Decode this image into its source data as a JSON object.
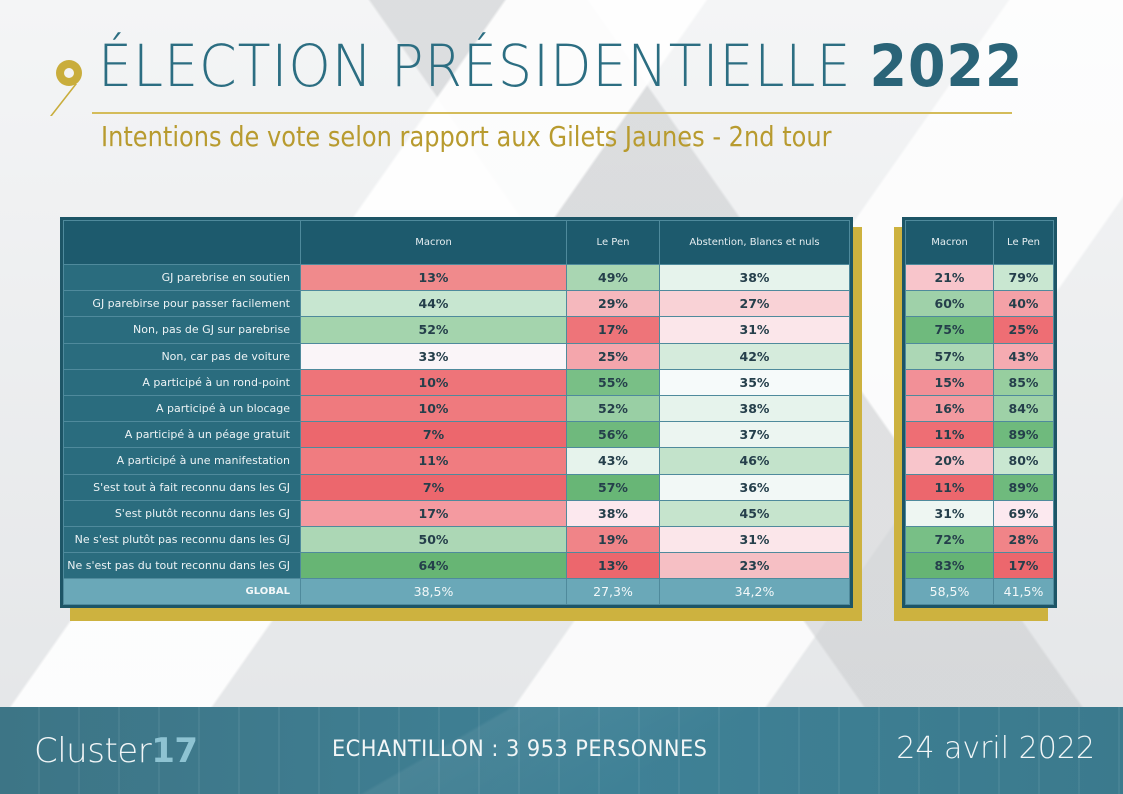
{
  "header": {
    "title_main": "ÉLECTION PRÉSIDENTIELLE",
    "title_year": "2022",
    "subtitle": "Intentions de vote selon rapport aux Gilets Jaunes - 2nd tour"
  },
  "footer": {
    "logo_text": "Cluster",
    "logo_number": "17",
    "sample": "ECHANTILLON : 3 953 PERSONNES",
    "date": "24 avril 2022"
  },
  "colors": {
    "teal_dark": "#1d5a6d",
    "teal_label": "#2a6c7e",
    "global_row": "#6aa8b8",
    "gold": "#c9ad3c",
    "title": "#2c6e82"
  },
  "chart_data": [
    {
      "type": "table",
      "title": "Intentions de vote (avec abstention)",
      "columns": [
        "",
        "Macron",
        "Le Pen",
        "Abstention, Blancs et nuls"
      ],
      "rows": [
        {
          "label": "GJ parebrise en soutien",
          "values": [
            "13%",
            "49%",
            "38%"
          ],
          "colors": [
            "#f08a8c",
            "#a9d6b2",
            "#e6f3ec"
          ]
        },
        {
          "label": "GJ parebirse pour passer facilement",
          "values": [
            "44%",
            "29%",
            "27%"
          ],
          "colors": [
            "#c7e6d0",
            "#f5b8bd",
            "#f9d2d6"
          ]
        },
        {
          "label": "Non, pas de GJ sur parebrise",
          "values": [
            "52%",
            "17%",
            "31%"
          ],
          "colors": [
            "#a4d4ad",
            "#ee7479",
            "#fbe6ea"
          ]
        },
        {
          "label": "Non, car pas de voiture",
          "values": [
            "33%",
            "25%",
            "42%"
          ],
          "colors": [
            "#faf5f8",
            "#f4a6ac",
            "#d5ebdc"
          ]
        },
        {
          "label": "A participé à un rond-point",
          "values": [
            "10%",
            "55%",
            "35%"
          ],
          "colors": [
            "#ee7479",
            "#79bf86",
            "#f6fafa"
          ]
        },
        {
          "label": "A participé à un blocage",
          "values": [
            "10%",
            "52%",
            "38%"
          ],
          "colors": [
            "#ef7a7e",
            "#99cfa4",
            "#e6f3ec"
          ]
        },
        {
          "label": "A participé à un péage gratuit",
          "values": [
            "7%",
            "56%",
            "37%"
          ],
          "colors": [
            "#ec676d",
            "#6fb97d",
            "#ecf5f1"
          ]
        },
        {
          "label": "A participé à une manifestation",
          "values": [
            "11%",
            "43%",
            "46%"
          ],
          "colors": [
            "#f07c80",
            "#e6f3ec",
            "#c3e3cb"
          ]
        },
        {
          "label": "S'est tout à fait reconnu dans les GJ",
          "values": [
            "7%",
            "57%",
            "36%"
          ],
          "colors": [
            "#ec676d",
            "#68b676",
            "#f2f8f6"
          ]
        },
        {
          "label": "S'est plutôt reconnu dans les GJ",
          "values": [
            "17%",
            "38%",
            "45%"
          ],
          "colors": [
            "#f49aa0",
            "#fce8ee",
            "#c6e4cd"
          ]
        },
        {
          "label": "Ne s'est plutôt pas reconnu dans les GJ",
          "values": [
            "50%",
            "19%",
            "31%"
          ],
          "colors": [
            "#acd7b5",
            "#f08488",
            "#fbe6ea"
          ]
        },
        {
          "label": "Ne s'est pas du tout reconnu dans les GJ",
          "values": [
            "64%",
            "13%",
            "23%"
          ],
          "colors": [
            "#67b574",
            "#ec676d",
            "#f6bfc4"
          ]
        }
      ],
      "global": {
        "label": "GLOBAL",
        "values": [
          "38,5%",
          "27,3%",
          "34,2%"
        ]
      }
    },
    {
      "type": "table",
      "title": "Intentions de vote (exprimés)",
      "columns": [
        "Macron",
        "Le Pen"
      ],
      "rows": [
        {
          "values": [
            "21%",
            "79%"
          ],
          "colors": [
            "#f8c5cb",
            "#c9e7d1"
          ]
        },
        {
          "values": [
            "60%",
            "40%"
          ],
          "colors": [
            "#9fd1a9",
            "#f4a1a7"
          ]
        },
        {
          "values": [
            "75%",
            "25%"
          ],
          "colors": [
            "#6fba7d",
            "#ee6e74"
          ]
        },
        {
          "values": [
            "57%",
            "43%"
          ],
          "colors": [
            "#acd7b5",
            "#f5abb1"
          ]
        },
        {
          "values": [
            "15%",
            "85%"
          ],
          "colors": [
            "#f29097",
            "#97ce9f"
          ]
        },
        {
          "values": [
            "16%",
            "84%"
          ],
          "colors": [
            "#f39aa0",
            "#9ed1a7"
          ]
        },
        {
          "values": [
            "11%",
            "89%"
          ],
          "colors": [
            "#ee6e74",
            "#6fba7d"
          ]
        },
        {
          "values": [
            "20%",
            "80%"
          ],
          "colors": [
            "#f8c5cb",
            "#c9e7d1"
          ]
        },
        {
          "values": [
            "11%",
            "89%"
          ],
          "colors": [
            "#ec676d",
            "#6fba7d"
          ]
        },
        {
          "values": [
            "31%",
            "69%"
          ],
          "colors": [
            "#eef6f2",
            "#fce9ef"
          ]
        },
        {
          "values": [
            "72%",
            "28%"
          ],
          "colors": [
            "#78bf86",
            "#f08488"
          ]
        },
        {
          "values": [
            "83%",
            "17%"
          ],
          "colors": [
            "#66b474",
            "#ec676d"
          ]
        }
      ],
      "global": {
        "values": [
          "58,5%",
          "41,5%"
        ]
      }
    }
  ]
}
